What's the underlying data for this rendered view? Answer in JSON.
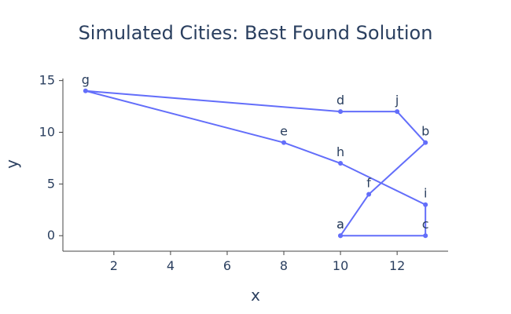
{
  "chart_data": {
    "type": "line",
    "title": "Simulated Cities: Best Found Solution",
    "xlabel": "x",
    "ylabel": "y",
    "xlim": [
      0.2,
      13.8
    ],
    "ylim": [
      -1.5,
      15.2
    ],
    "xticks": [
      2,
      4,
      6,
      8,
      10,
      12
    ],
    "yticks": [
      0,
      5,
      10,
      15
    ],
    "grid": false,
    "line_color": "#636efa",
    "series": [
      {
        "points": [
          {
            "label": "a",
            "x": 10,
            "y": 0
          },
          {
            "label": "c",
            "x": 13,
            "y": 0
          },
          {
            "label": "i",
            "x": 13,
            "y": 3
          },
          {
            "label": "h",
            "x": 10,
            "y": 7
          },
          {
            "label": "e",
            "x": 8,
            "y": 9
          },
          {
            "label": "g",
            "x": 1,
            "y": 14
          },
          {
            "label": "d",
            "x": 10,
            "y": 12
          },
          {
            "label": "j",
            "x": 12,
            "y": 12
          },
          {
            "label": "b",
            "x": 13,
            "y": 9
          },
          {
            "label": "f",
            "x": 11,
            "y": 4
          },
          {
            "label": "a",
            "x": 10,
            "y": 0
          }
        ]
      }
    ]
  }
}
